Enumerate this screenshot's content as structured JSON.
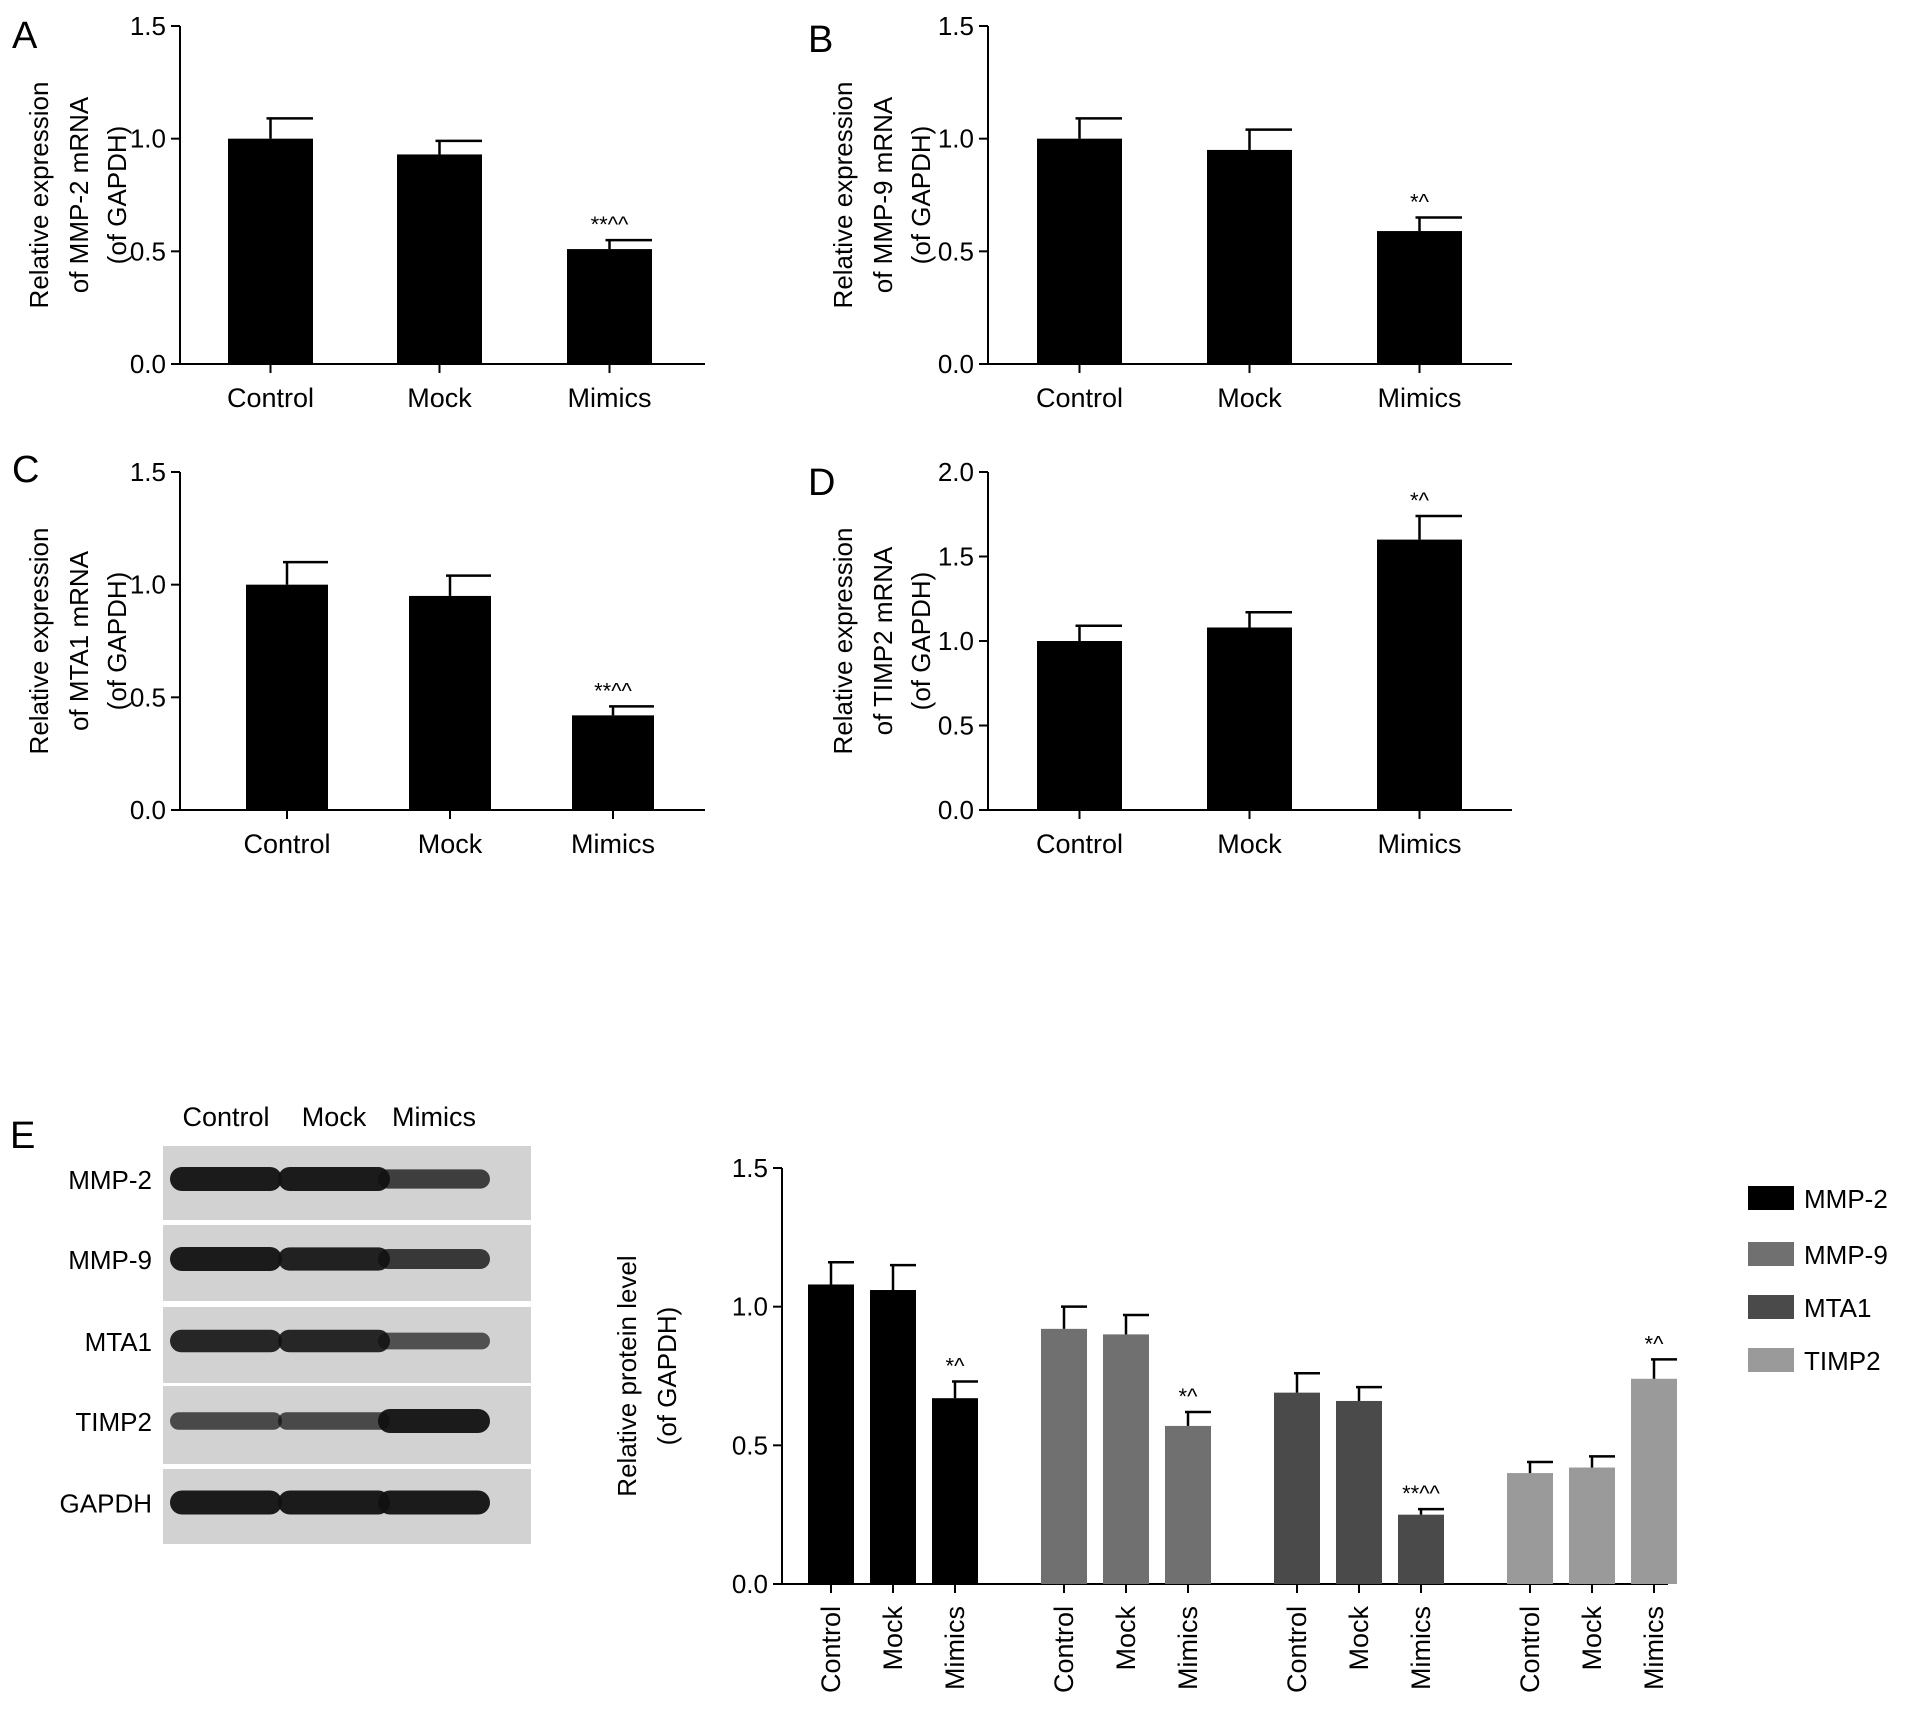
{
  "chart_data": [
    {
      "panel": "A",
      "type": "bar",
      "categories": [
        "Control",
        "Mock",
        "Mimics"
      ],
      "values": [
        1.0,
        0.93,
        0.51
      ],
      "errors": [
        0.09,
        0.06,
        0.04
      ],
      "annotations": [
        "",
        "",
        "**^^"
      ],
      "ylabel": [
        "Relative expression",
        "of MMP-2 mRNA",
        "(of GAPDH)"
      ],
      "ylim": [
        0,
        1.5
      ],
      "yticks": [
        "0.0",
        "0.5",
        "1.0",
        "1.5"
      ],
      "colors": [
        "#000000"
      ]
    },
    {
      "panel": "B",
      "type": "bar",
      "categories": [
        "Control",
        "Mock",
        "Mimics"
      ],
      "values": [
        1.0,
        0.95,
        0.59
      ],
      "errors": [
        0.09,
        0.09,
        0.06
      ],
      "annotations": [
        "",
        "",
        "*^"
      ],
      "ylabel": [
        "Relative expression",
        "of MMP-9 mRNA",
        "(of GAPDH)"
      ],
      "ylim": [
        0,
        1.5
      ],
      "yticks": [
        "0.0",
        "0.5",
        "1.0",
        "1.5"
      ],
      "colors": [
        "#000000"
      ]
    },
    {
      "panel": "C",
      "type": "bar",
      "categories": [
        "Control",
        "Mock",
        "Mimics"
      ],
      "values": [
        1.0,
        0.95,
        0.42
      ],
      "errors": [
        0.1,
        0.09,
        0.04
      ],
      "annotations": [
        "",
        "",
        "**^^"
      ],
      "ylabel": [
        "Relative expression",
        "of MTA1 mRNA",
        "(of GAPDH)"
      ],
      "ylim": [
        0,
        1.5
      ],
      "yticks": [
        "0.0",
        "0.5",
        "1.0",
        "1.5"
      ],
      "colors": [
        "#000000"
      ]
    },
    {
      "panel": "D",
      "type": "bar",
      "categories": [
        "Control",
        "Mock",
        "Mimics"
      ],
      "values": [
        1.0,
        1.08,
        1.6
      ],
      "errors": [
        0.09,
        0.09,
        0.14
      ],
      "annotations": [
        "",
        "",
        "*^"
      ],
      "ylabel": [
        "Relative expression",
        "of TIMP2 mRNA",
        "(of GAPDH)"
      ],
      "ylim": [
        0,
        2.0
      ],
      "yticks": [
        "0.0",
        "0.5",
        "1.0",
        "1.5",
        "2.0"
      ],
      "colors": [
        "#000000"
      ]
    },
    {
      "panel": "E",
      "type": "bar",
      "categories": [
        "Control",
        "Mock",
        "Mimics"
      ],
      "series": [
        {
          "name": "MMP-2",
          "color": "#000000",
          "values": [
            1.08,
            1.06,
            0.67
          ],
          "errors": [
            0.08,
            0.09,
            0.06
          ],
          "annotations": [
            "",
            "",
            "*^"
          ]
        },
        {
          "name": "MMP-9",
          "color": "#707070",
          "values": [
            0.92,
            0.9,
            0.57
          ],
          "errors": [
            0.08,
            0.07,
            0.05
          ],
          "annotations": [
            "",
            "",
            "*^"
          ]
        },
        {
          "name": "MTA1",
          "color": "#4a4a4a",
          "values": [
            0.69,
            0.66,
            0.25
          ],
          "errors": [
            0.07,
            0.05,
            0.02
          ],
          "annotations": [
            "",
            "",
            "**^^"
          ]
        },
        {
          "name": "TIMP2",
          "color": "#9a9a9a",
          "values": [
            0.4,
            0.42,
            0.74
          ],
          "errors": [
            0.04,
            0.04,
            0.07
          ],
          "annotations": [
            "",
            "",
            "*^"
          ]
        }
      ],
      "ylabel": [
        "Relative protein level",
        "(of GAPDH)"
      ],
      "ylim": [
        0,
        1.5
      ],
      "yticks": [
        "0.0",
        "0.5",
        "1.0",
        "1.5"
      ],
      "legend": "right"
    }
  ],
  "blot": {
    "panel": "E",
    "lanes": [
      "Control",
      "Mock",
      "Mimics"
    ],
    "rows": [
      {
        "label": "MMP-2",
        "intensity": [
          1.0,
          1.0,
          0.7
        ]
      },
      {
        "label": "MMP-9",
        "intensity": [
          1.0,
          0.95,
          0.75
        ]
      },
      {
        "label": "MTA1",
        "intensity": [
          0.9,
          0.9,
          0.55
        ]
      },
      {
        "label": "TIMP2",
        "intensity": [
          0.6,
          0.6,
          1.0
        ]
      },
      {
        "label": "GAPDH",
        "intensity": [
          1.0,
          1.0,
          1.0
        ]
      }
    ]
  }
}
